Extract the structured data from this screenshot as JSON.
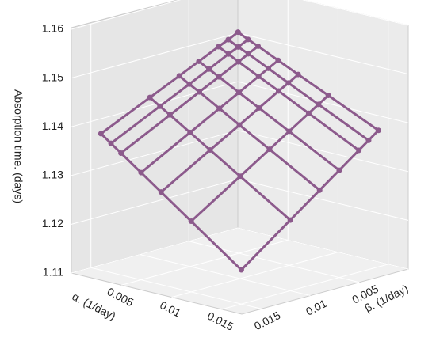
{
  "chart_data": {
    "type": "wireframe3d",
    "zlabel": "Absorption time. (days)",
    "xlabel": "α. (1/day)",
    "ylabel": "β. (1/day)",
    "x": [
      0.001,
      0.002,
      0.003,
      0.005,
      0.007,
      0.01,
      0.015
    ],
    "y": [
      0.001,
      0.002,
      0.003,
      0.005,
      0.007,
      0.01,
      0.015
    ],
    "z": [
      [
        1.1512,
        1.1502,
        1.1493,
        1.1474,
        1.1455,
        1.1427,
        1.138
      ],
      [
        1.1502,
        1.1492,
        1.1483,
        1.1463,
        1.1443,
        1.1414,
        1.1365
      ],
      [
        1.1493,
        1.1483,
        1.1472,
        1.1452,
        1.1432,
        1.1401,
        1.135
      ],
      [
        1.1474,
        1.1463,
        1.1452,
        1.143,
        1.1408,
        1.1375,
        1.132
      ],
      [
        1.1455,
        1.1443,
        1.1432,
        1.1408,
        1.1384,
        1.1349,
        1.129
      ],
      [
        1.1427,
        1.1414,
        1.1401,
        1.1375,
        1.1349,
        1.131,
        1.1245
      ],
      [
        1.138,
        1.1365,
        1.135,
        1.132,
        1.129,
        1.1245,
        1.117
      ]
    ],
    "xlim": [
      0,
      0.017
    ],
    "ylim": [
      0,
      0.017
    ],
    "zlim": [
      1.11,
      1.16
    ],
    "xticks": [
      0.005,
      0.01,
      0.015
    ],
    "yticks": [
      0.005,
      0.01,
      0.015
    ],
    "zticks": [
      1.11,
      1.12,
      1.13,
      1.14,
      1.15,
      1.16
    ],
    "color": "#8c5a8c",
    "grid": true
  }
}
